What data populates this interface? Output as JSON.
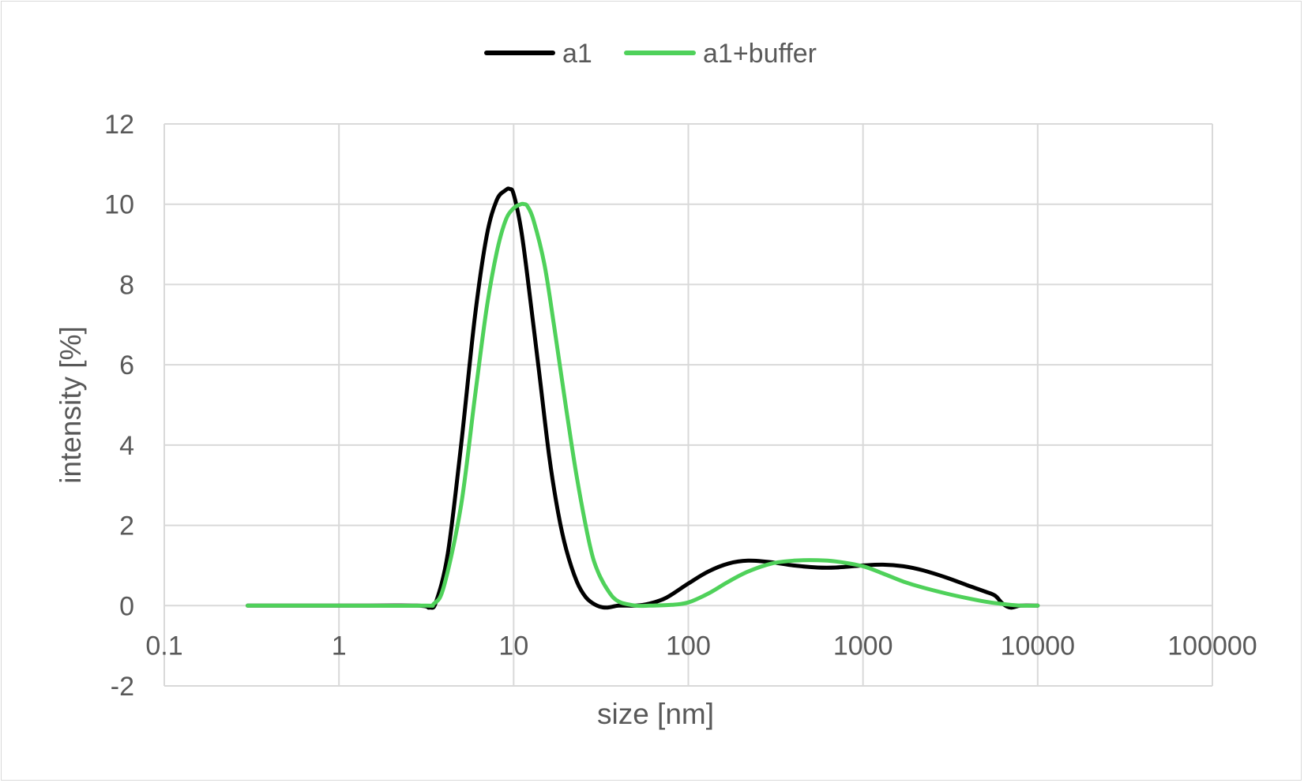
{
  "chart_data": {
    "type": "line",
    "title": "",
    "xlabel": "size [nm]",
    "ylabel": "intensity [%]",
    "x_scale": "log",
    "xlim": [
      0.1,
      100000
    ],
    "ylim": [
      -2,
      12
    ],
    "x_ticks": [
      "0.1",
      "1",
      "10",
      "100",
      "1000",
      "10000",
      "100000"
    ],
    "y_ticks": [
      "-2",
      "0",
      "2",
      "4",
      "6",
      "8",
      "10",
      "12"
    ],
    "grid": true,
    "legend_position": "top",
    "series": [
      {
        "name": "a1",
        "color": "#000000",
        "x": [
          0.3,
          1,
          2.8,
          3.3,
          3.6,
          4.2,
          5,
          6,
          7,
          8,
          9,
          9.5,
          10,
          11,
          12,
          14,
          16,
          18,
          20,
          23,
          26,
          30,
          34,
          40,
          50,
          60,
          75,
          100,
          130,
          170,
          220,
          300,
          400,
          550,
          700,
          1000,
          1300,
          1700,
          2200,
          3000,
          4000,
          5000,
          5700,
          6300,
          7000,
          8000,
          10000
        ],
        "y": [
          0,
          0,
          0,
          -0.05,
          0.1,
          1.3,
          4.0,
          7.2,
          9.2,
          10.1,
          10.35,
          10.38,
          10.25,
          9.4,
          8.2,
          5.8,
          3.7,
          2.3,
          1.4,
          0.6,
          0.2,
          0.0,
          -0.05,
          0.0,
          0.0,
          0.05,
          0.2,
          0.55,
          0.85,
          1.05,
          1.12,
          1.08,
          1.0,
          0.95,
          0.95,
          1.0,
          1.02,
          0.98,
          0.88,
          0.7,
          0.5,
          0.35,
          0.25,
          0.05,
          -0.05,
          0.0,
          0.0
        ]
      },
      {
        "name": "a1+buffer",
        "color": "#4fd15a",
        "x": [
          0.3,
          1,
          3,
          3.5,
          4,
          5,
          6,
          7,
          8,
          9,
          10,
          11,
          11.5,
          12,
          13,
          15,
          17,
          20,
          23,
          27,
          30,
          35,
          40,
          50,
          60,
          80,
          100,
          130,
          170,
          220,
          300,
          400,
          550,
          700,
          1000,
          1300,
          1700,
          2200,
          3000,
          4000,
          5000,
          6000,
          7000,
          8000,
          10000
        ],
        "y": [
          0,
          0,
          0,
          0.05,
          0.5,
          2.5,
          5.2,
          7.4,
          8.8,
          9.6,
          9.9,
          10.0,
          10.0,
          9.95,
          9.6,
          8.5,
          7.0,
          4.9,
          3.2,
          1.6,
          0.9,
          0.35,
          0.1,
          0.0,
          0.0,
          0.02,
          0.08,
          0.3,
          0.6,
          0.85,
          1.05,
          1.12,
          1.13,
          1.1,
          0.98,
          0.8,
          0.6,
          0.45,
          0.3,
          0.18,
          0.1,
          0.05,
          0.02,
          0.0,
          0.0
        ]
      }
    ]
  }
}
